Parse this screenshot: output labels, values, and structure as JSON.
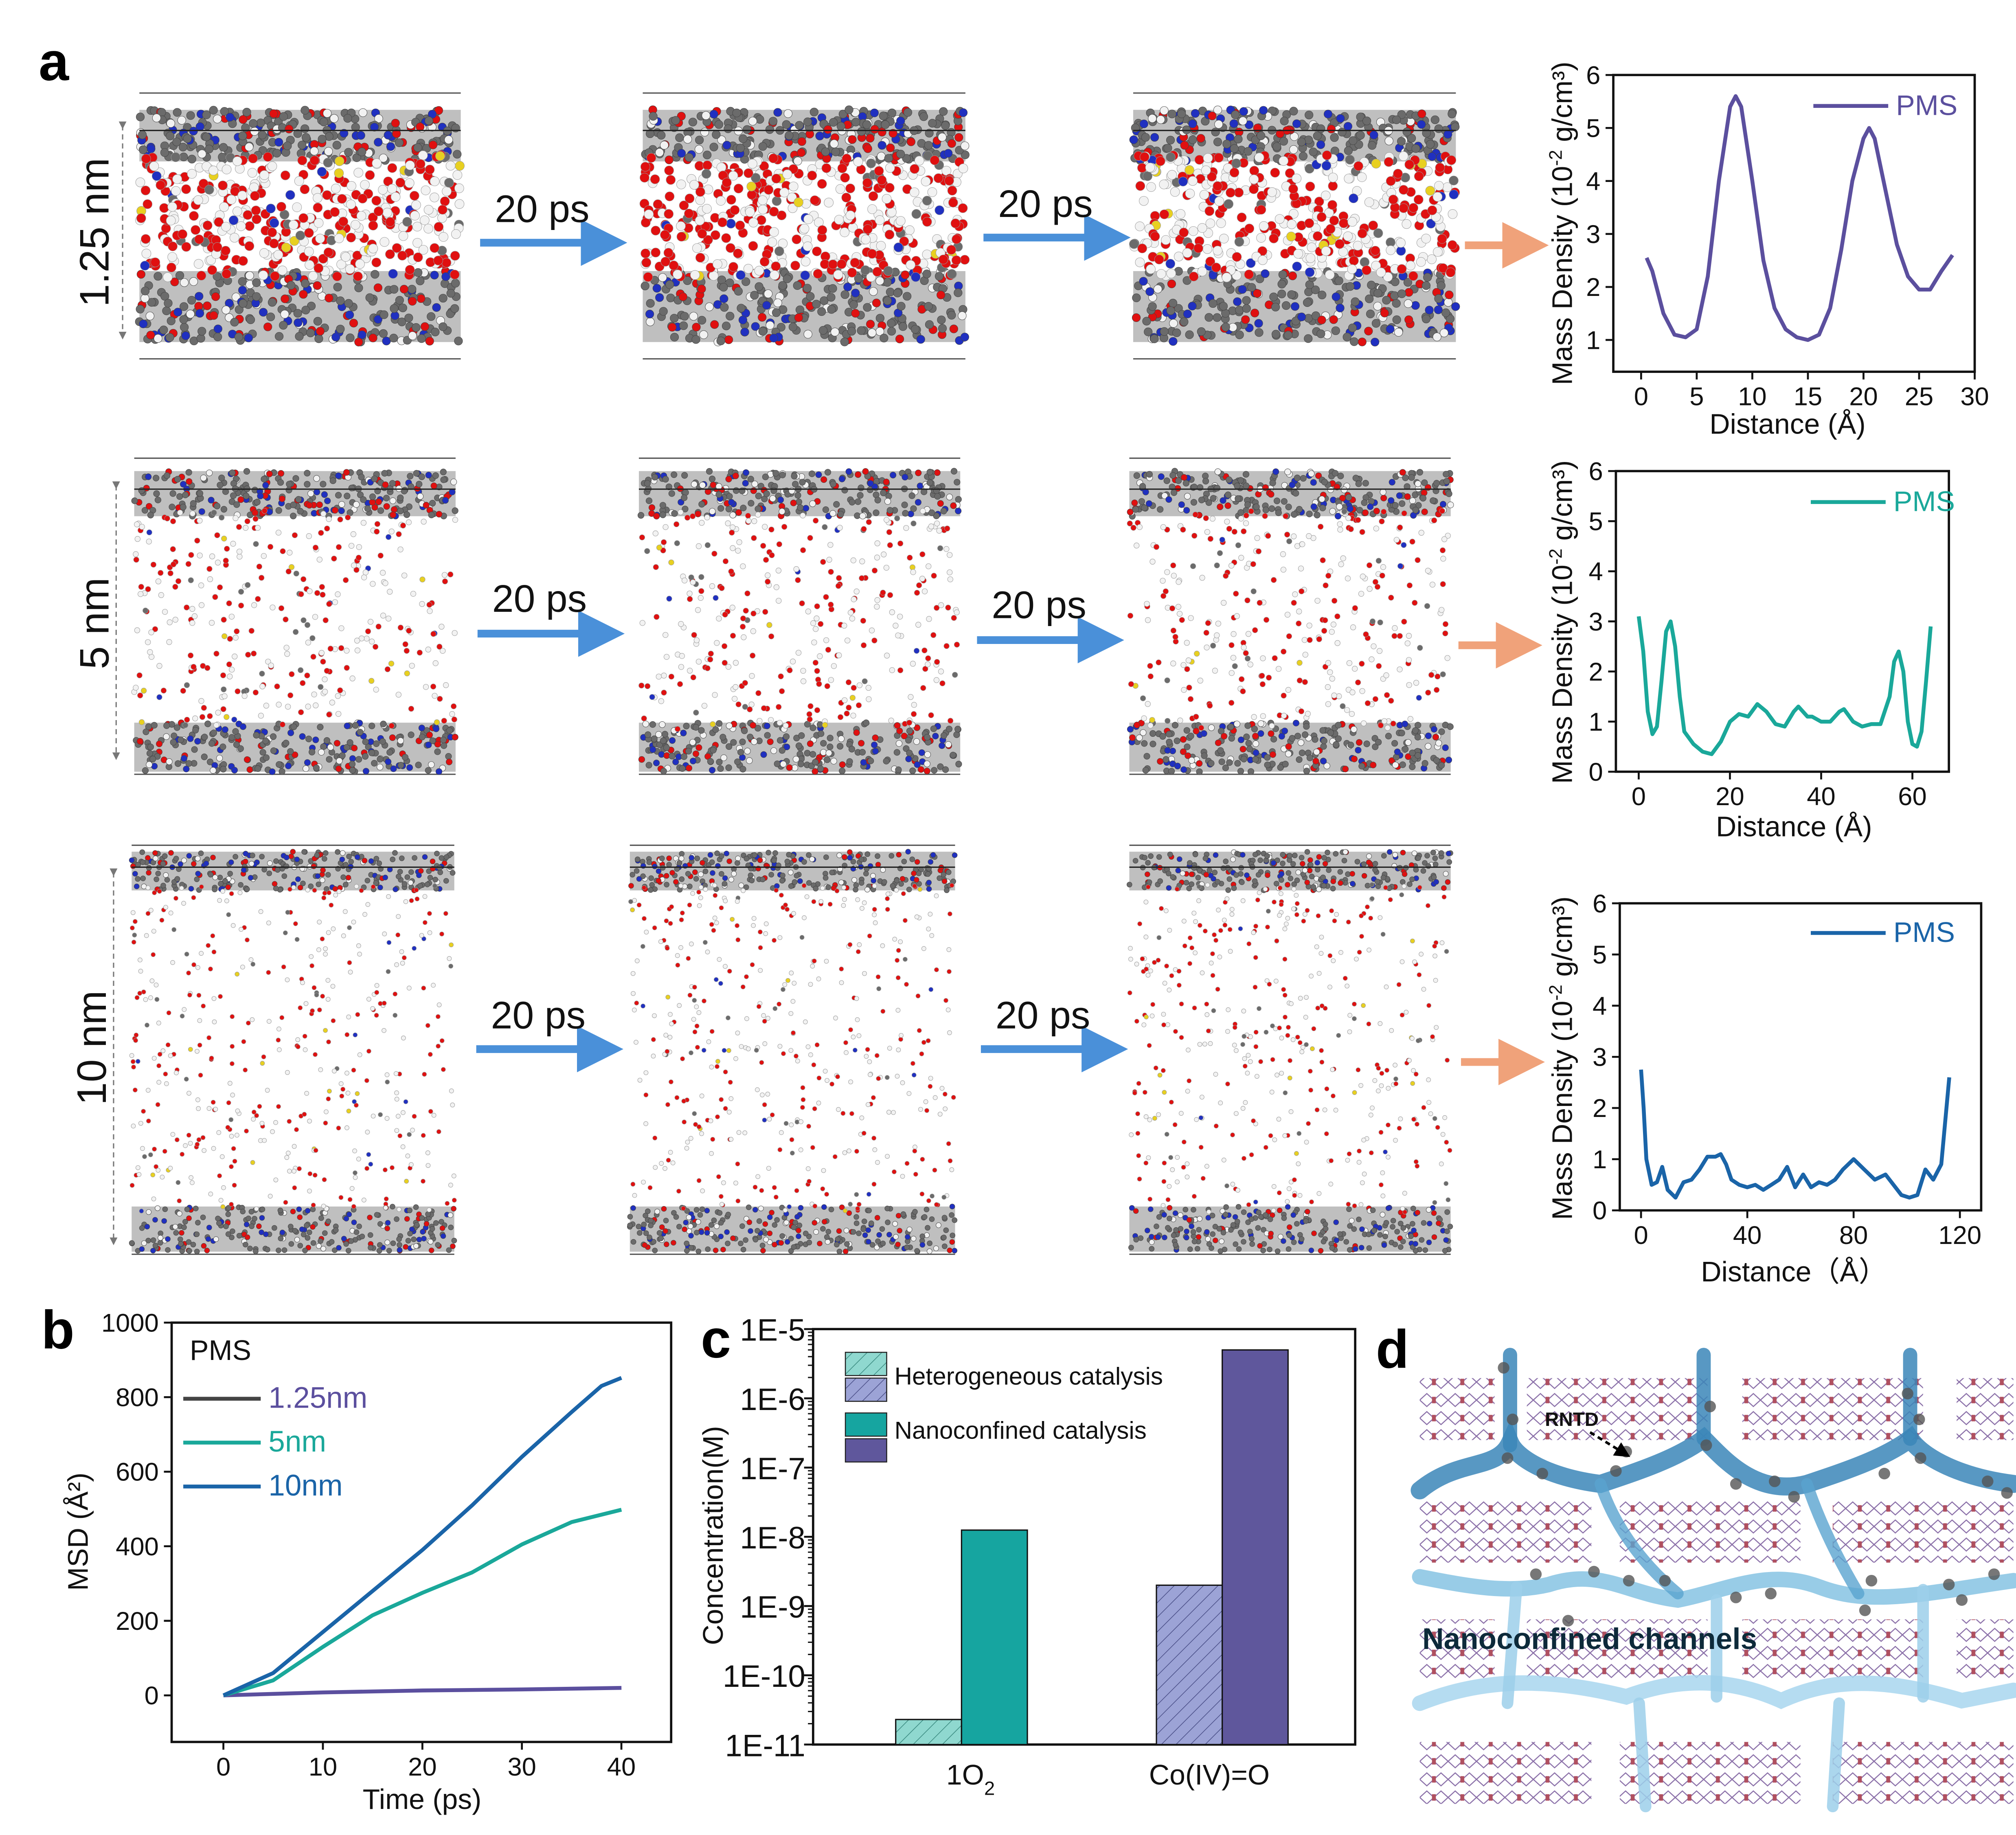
{
  "panels": {
    "a": "a",
    "b": "b",
    "c": "c",
    "d": "d"
  },
  "panel_a": {
    "rows": [
      {
        "label": "1.25 nm",
        "step1": "20 ps",
        "step2": "20 ps"
      },
      {
        "label": "5 nm",
        "step1": "20 ps",
        "step2": "20 ps"
      },
      {
        "label": "10 nm",
        "step1": "20 ps",
        "step2": "20 ps"
      }
    ],
    "colors": {
      "arrow": "#4a90d9",
      "orange_arrow": "#f0a27a",
      "oxygen": "#e01010",
      "hydrogen": "#f2f2f2",
      "carbon": "#6b6b6b",
      "nitrogen": "#2030c0",
      "sulfur": "#e8d020"
    }
  },
  "chart_data": [
    {
      "id": "density-1.25nm",
      "type": "line",
      "title": "",
      "xlabel": "Distance (Å)",
      "ylabel_pre": "Mass Density (10",
      "ylabel_sup": "-2",
      "ylabel_post": " g/cm³)",
      "xlim": [
        -2.5,
        30
      ],
      "ylim": [
        0.4,
        6
      ],
      "xticks": [
        0,
        5,
        10,
        15,
        20,
        25,
        30
      ],
      "yticks": [
        1,
        2,
        3,
        4,
        5,
        6
      ],
      "legend": "top-right",
      "series": [
        {
          "name": "PMS",
          "color": "#5b4f9e",
          "x": [
            0.5,
            1,
            2,
            3,
            4,
            5,
            6,
            7,
            8,
            8.5,
            9,
            10,
            11,
            12,
            13,
            14,
            15,
            16,
            17,
            18,
            19,
            20,
            20.5,
            21,
            22,
            23,
            24,
            25,
            26,
            27,
            28
          ],
          "y": [
            2.55,
            2.3,
            1.5,
            1.1,
            1.05,
            1.2,
            2.2,
            4,
            5.4,
            5.6,
            5.4,
            4,
            2.5,
            1.6,
            1.2,
            1.05,
            1.0,
            1.1,
            1.6,
            2.7,
            4,
            4.8,
            5.0,
            4.8,
            3.8,
            2.8,
            2.2,
            1.95,
            1.95,
            2.3,
            2.6
          ]
        }
      ]
    },
    {
      "id": "density-5nm",
      "type": "line",
      "title": "",
      "xlabel": "Distance (Å)",
      "ylabel_pre": "Mass Density (10",
      "ylabel_sup": "-2",
      "ylabel_post": " g/cm³)",
      "xlim": [
        -5,
        68
      ],
      "ylim": [
        0,
        6
      ],
      "xticks": [
        0,
        20,
        40,
        60
      ],
      "yticks": [
        0,
        1,
        2,
        3,
        4,
        5,
        6
      ],
      "legend": "top-right",
      "series": [
        {
          "name": "PMS",
          "color": "#1aa89a",
          "x": [
            0,
            1,
            2,
            3,
            4,
            5,
            6,
            7,
            8,
            9,
            10,
            12,
            14,
            16,
            18,
            20,
            22,
            24,
            26,
            28,
            30,
            32,
            34,
            35,
            37,
            38,
            40,
            42,
            44,
            45,
            47,
            49,
            51,
            53,
            55,
            56,
            57,
            58,
            59,
            60,
            61,
            62,
            63,
            64
          ],
          "y": [
            3.1,
            2.4,
            1.2,
            0.75,
            0.9,
            1.8,
            2.8,
            3.0,
            2.5,
            1.5,
            0.8,
            0.55,
            0.4,
            0.35,
            0.6,
            1.0,
            1.15,
            1.1,
            1.35,
            1.2,
            0.95,
            0.9,
            1.2,
            1.3,
            1.1,
            1.1,
            1.0,
            1.0,
            1.2,
            1.25,
            1.0,
            0.9,
            0.95,
            0.95,
            1.5,
            2.2,
            2.4,
            2.0,
            1.0,
            0.55,
            0.5,
            0.8,
            1.8,
            2.9
          ]
        }
      ]
    },
    {
      "id": "density-10nm",
      "type": "line",
      "title": "",
      "xlabel": "Distance（Å）",
      "ylabel_pre": "Mass Density (10",
      "ylabel_sup": "-2",
      "ylabel_post": " g/cm³)",
      "xlim": [
        -8,
        128
      ],
      "ylim": [
        0,
        6
      ],
      "xticks": [
        0,
        40,
        80,
        120
      ],
      "yticks": [
        0,
        1,
        2,
        3,
        4,
        5,
        6
      ],
      "legend": "top-right",
      "series": [
        {
          "name": "PMS",
          "color": "#1a64a8",
          "x": [
            0,
            1,
            2,
            4,
            6,
            8,
            10,
            13,
            16,
            19,
            22,
            25,
            28,
            30,
            32,
            34,
            37,
            40,
            43,
            46,
            49,
            52,
            55,
            58,
            61,
            64,
            67,
            70,
            73,
            76,
            80,
            84,
            88,
            92,
            95,
            98,
            101,
            104,
            107,
            110,
            113,
            116
          ],
          "y": [
            2.75,
            2.0,
            1.0,
            0.5,
            0.55,
            0.85,
            0.4,
            0.25,
            0.55,
            0.6,
            0.8,
            1.05,
            1.05,
            1.1,
            0.9,
            0.6,
            0.5,
            0.45,
            0.5,
            0.4,
            0.5,
            0.6,
            0.85,
            0.45,
            0.7,
            0.45,
            0.55,
            0.5,
            0.6,
            0.8,
            1.0,
            0.8,
            0.6,
            0.7,
            0.5,
            0.3,
            0.25,
            0.3,
            0.8,
            0.6,
            0.9,
            2.6
          ]
        }
      ]
    },
    {
      "id": "msd",
      "type": "line",
      "title": "",
      "xlabel": "Time (ps)",
      "ylabel": "MSD (Å²)",
      "legend_title": "PMS",
      "xlim": [
        -5.2,
        45
      ],
      "ylim": [
        -125,
        1000
      ],
      "xticks": [
        0,
        10,
        20,
        30,
        40
      ],
      "yticks": [
        0,
        200,
        400,
        600,
        800,
        1000
      ],
      "legend": "top-left",
      "series": [
        {
          "name": "1.25nm",
          "color": "#5b4f9e",
          "legend_line": "#444444",
          "x": [
            0,
            10,
            20,
            30,
            40
          ],
          "y": [
            0,
            8,
            13,
            16,
            20
          ]
        },
        {
          "name": "5nm",
          "color": "#1aa89a",
          "x": [
            0,
            5,
            10,
            15,
            20,
            25,
            30,
            35,
            40
          ],
          "y": [
            0,
            40,
            130,
            215,
            275,
            330,
            405,
            465,
            498
          ]
        },
        {
          "name": "10nm",
          "color": "#1a64a8",
          "x": [
            0,
            5,
            10,
            15,
            20,
            25,
            30,
            35,
            38,
            40
          ],
          "y": [
            0,
            60,
            170,
            280,
            390,
            510,
            640,
            760,
            830,
            852
          ]
        }
      ]
    },
    {
      "id": "concentration",
      "type": "bar",
      "title": "",
      "ylabel": "Concentration(M)",
      "yscale": "log",
      "ylim": [
        1e-11,
        1e-05
      ],
      "yticks": [
        "1E-11",
        "1E-10",
        "1E-9",
        "1E-8",
        "1E-7",
        "1E-6",
        "1E-5"
      ],
      "categories": [
        {
          "main": "1O",
          "sub": "2"
        },
        {
          "main": "Co(IV)=O",
          "sub": ""
        }
      ],
      "legend": "top-left",
      "legend_entries": [
        "Heterogeneous catalysis",
        "Nanoconfined catalysis"
      ],
      "series": [
        {
          "name": "Heterogeneous catalysis",
          "hatched": true,
          "colors": [
            "#8fd8cf",
            "#9ca3d6"
          ],
          "values": [
            2.3e-11,
            2e-09
          ]
        },
        {
          "name": "Nanoconfined catalysis",
          "hatched": false,
          "colors": [
            "#16a5a0",
            "#5f579c"
          ],
          "values": [
            1.25e-08,
            5e-06
          ]
        }
      ]
    }
  ],
  "panel_d": {
    "annotation": "RNTD",
    "caption": "Nanoconfined channels"
  }
}
